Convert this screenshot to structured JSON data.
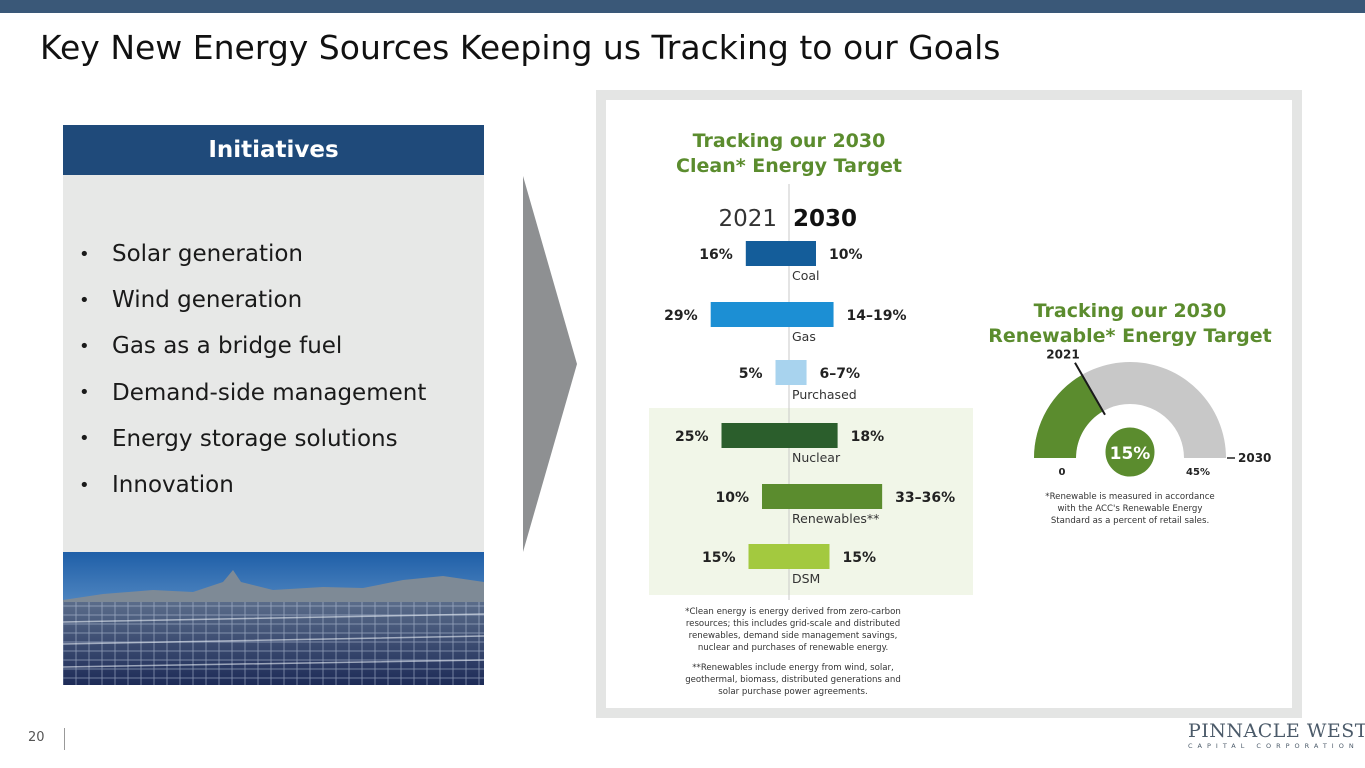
{
  "slide": {
    "title": "Key New Energy Sources Keeping us Tracking to our Goals",
    "page_number": "20"
  },
  "initiatives": {
    "header": "Initiatives",
    "bullet_symbol": "•",
    "items": [
      "Solar generation",
      "Wind generation",
      "Gas as a bridge fuel",
      "Demand-side management",
      "Energy storage solutions",
      "Innovation"
    ]
  },
  "logo": {
    "name": "PINNACLE WEST",
    "subtitle": "CAPITAL CORPORATION"
  },
  "colors": {
    "top_bar": "#3a5878",
    "panel_header": "#1f4a7a",
    "chart_title_green": "#5b8c2e",
    "highlight_bg": "#f1f6e8"
  },
  "chart_data": [
    {
      "type": "bar",
      "orientation": "horizontal-diverging",
      "title": "Tracking our 2030\nClean* Energy Target",
      "left_label": "2021",
      "right_label": "2030",
      "categories": [
        "Coal",
        "Gas",
        "Purchased",
        "Nuclear",
        "Renewables**",
        "DSM"
      ],
      "series": [
        {
          "name": "2021",
          "values": [
            16,
            29,
            5,
            25,
            10,
            15
          ],
          "labels": [
            "16%",
            "29%",
            "5%",
            "25%",
            "10%",
            "15%"
          ]
        },
        {
          "name": "2030",
          "values": [
            10,
            16.5,
            6.5,
            18,
            34.5,
            15
          ],
          "labels": [
            "10%",
            "14–19%",
            "6–7%",
            "18%",
            "33–36%",
            "15%"
          ]
        }
      ],
      "colors": [
        "#145d9a",
        "#1c8fd4",
        "#a8d3ee",
        "#2b5e2c",
        "#5b8c2e",
        "#a3c93f"
      ],
      "highlighted_categories": [
        "Nuclear",
        "Renewables**",
        "DSM"
      ],
      "footnotes": [
        "*Clean energy is energy derived from zero-carbon\nresources; this includes grid-scale and distributed\nrenewables, demand side management savings,\nnuclear and purchases of renewable energy.",
        "**Renewables include energy from wind, solar,\ngeothermal, biomass, distributed generations and\nsolar purchase power agreements."
      ]
    },
    {
      "type": "gauge",
      "title": "Tracking our 2030\nRenewable* Energy Target",
      "min": 0,
      "max": 45,
      "value": 15,
      "min_label": "0",
      "max_label": "45%",
      "value_label": "15%",
      "marker_label": "2021",
      "end_label": "2030",
      "colors": {
        "filled": "#5b8c2e",
        "remaining": "#c8c8c8"
      },
      "footnote": "*Renewable is measured in accordance\nwith the ACC's Renewable Energy\nStandard as a percent of retail sales."
    }
  ]
}
